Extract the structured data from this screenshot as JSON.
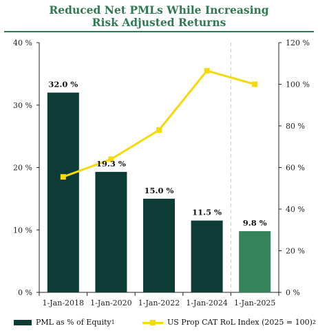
{
  "header": {
    "title_line1": "Reduced Net PMLs While Increasing",
    "title_line2": "Risk Adjusted Returns"
  },
  "chart_data": {
    "type": "bar",
    "categories": [
      "1-Jan-2018",
      "1-Jan-2020",
      "1-Jan-2022",
      "1-Jan-2024",
      "1-Jan-2025"
    ],
    "series": [
      {
        "name": "PML as % of Equity",
        "name_sup": "1",
        "type": "bar",
        "axis": "left",
        "values": [
          32.0,
          19.3,
          15.0,
          11.5,
          9.8
        ],
        "labels": [
          "32.0 %",
          "19.3 %",
          "15.0 %",
          "11.5 %",
          "9.8 %"
        ],
        "colors": [
          "#0d3b36",
          "#0d3b36",
          "#0d3b36",
          "#0d3b36",
          "#35835a"
        ]
      },
      {
        "name": "US Prop CAT RoL Index (2025 = 100)",
        "name_sup": "2",
        "type": "line",
        "axis": "right",
        "values": [
          55.5,
          64,
          78,
          106.5,
          100
        ],
        "color": "#f5d90a"
      }
    ],
    "left_axis": {
      "ylim": [
        0,
        40
      ],
      "ticks": [
        0,
        10,
        20,
        30,
        40
      ],
      "tick_labels": [
        "0 %",
        "10 %",
        "20 %",
        "30 %",
        "40 %"
      ]
    },
    "right_axis": {
      "ylim": [
        0,
        120
      ],
      "ticks": [
        0,
        20,
        40,
        60,
        80,
        100,
        120
      ],
      "tick_labels": [
        "0 %",
        "20 %",
        "40 %",
        "60 %",
        "80 %",
        "100 %",
        "120 %"
      ]
    },
    "divider_after_category": 3,
    "legend_position": "bottom"
  }
}
